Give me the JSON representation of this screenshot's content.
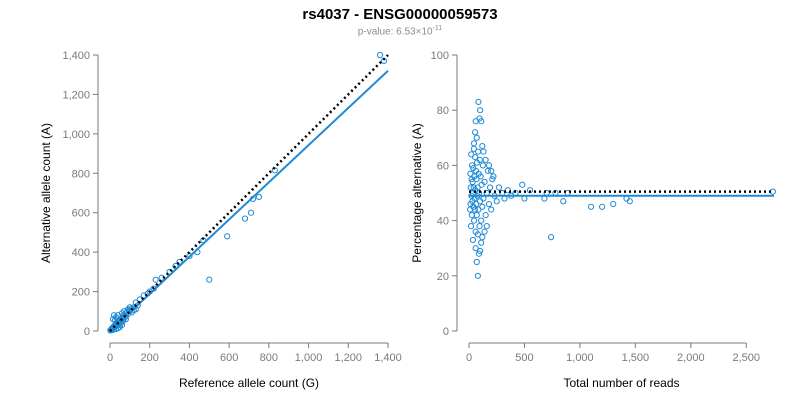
{
  "title": "rs4037 - ENSG00000059573",
  "subtitle": {
    "prefix": "p-value: 6.53×10",
    "exponent": "-11"
  },
  "colors": {
    "points": "#1f8ad6",
    "fit_line": "#1f8ad6",
    "reference_line": "#000000",
    "axis": "#7a7a7a"
  },
  "chart_data": [
    {
      "type": "scatter",
      "name": "allele-counts",
      "xlabel": "Reference allele count (G)",
      "ylabel": "Alternative allele count (A)",
      "xlim": [
        0,
        1400
      ],
      "ylim": [
        0,
        1400
      ],
      "xticks": [
        0,
        200,
        400,
        600,
        800,
        1000,
        1200,
        1400
      ],
      "xtick_labels": [
        "0",
        "200",
        "400",
        "600",
        "800",
        "1,000",
        "1,200",
        "1,400"
      ],
      "yticks": [
        0,
        200,
        400,
        600,
        800,
        1000,
        1200,
        1400
      ],
      "ytick_labels": [
        "0",
        "200",
        "400",
        "600",
        "800",
        "1,000",
        "1,200",
        "1,400"
      ],
      "fit_line": {
        "x": [
          0,
          1400
        ],
        "y": [
          0,
          1320
        ]
      },
      "reference_line": {
        "x": [
          0,
          1400
        ],
        "y": [
          0,
          1400
        ]
      },
      "points": [
        [
          1360,
          1400
        ],
        [
          1380,
          1370
        ],
        [
          830,
          815
        ],
        [
          750,
          680
        ],
        [
          720,
          670
        ],
        [
          710,
          600
        ],
        [
          680,
          570
        ],
        [
          590,
          480
        ],
        [
          500,
          260
        ],
        [
          470,
          460
        ],
        [
          440,
          400
        ],
        [
          400,
          380
        ],
        [
          350,
          350
        ],
        [
          330,
          330
        ],
        [
          300,
          300
        ],
        [
          260,
          270
        ],
        [
          230,
          260
        ],
        [
          220,
          215
        ],
        [
          200,
          200
        ],
        [
          190,
          190
        ],
        [
          170,
          180
        ],
        [
          150,
          160
        ],
        [
          140,
          130
        ],
        [
          130,
          145
        ],
        [
          120,
          120
        ],
        [
          110,
          115
        ],
        [
          100,
          100
        ],
        [
          95,
          105
        ],
        [
          90,
          85
        ],
        [
          85,
          95
        ],
        [
          80,
          75
        ],
        [
          78,
          90
        ],
        [
          75,
          70
        ],
        [
          70,
          80
        ],
        [
          68,
          60
        ],
        [
          65,
          68
        ],
        [
          60,
          62
        ],
        [
          58,
          55
        ],
        [
          55,
          58
        ],
        [
          52,
          50
        ],
        [
          50,
          56
        ],
        [
          48,
          45
        ],
        [
          45,
          50
        ],
        [
          42,
          40
        ],
        [
          40,
          44
        ],
        [
          38,
          36
        ],
        [
          36,
          40
        ],
        [
          34,
          30
        ],
        [
          32,
          35
        ],
        [
          30,
          32
        ],
        [
          28,
          27
        ],
        [
          26,
          30
        ],
        [
          25,
          24
        ],
        [
          24,
          26
        ],
        [
          22,
          22
        ],
        [
          21,
          25
        ],
        [
          20,
          18
        ],
        [
          19,
          21
        ],
        [
          18,
          20
        ],
        [
          17,
          16
        ],
        [
          16,
          19
        ],
        [
          15,
          14
        ],
        [
          14,
          17
        ],
        [
          13,
          12
        ],
        [
          12,
          15
        ],
        [
          11,
          10
        ],
        [
          10,
          13
        ],
        [
          9,
          9
        ],
        [
          8,
          11
        ],
        [
          7,
          7
        ],
        [
          6,
          8
        ],
        [
          5,
          6
        ],
        [
          4,
          5
        ],
        [
          3,
          4
        ],
        [
          2,
          3
        ],
        [
          20,
          80
        ],
        [
          30,
          70
        ],
        [
          40,
          80
        ],
        [
          15,
          60
        ],
        [
          25,
          55
        ],
        [
          35,
          65
        ],
        [
          55,
          40
        ],
        [
          65,
          50
        ],
        [
          45,
          30
        ],
        [
          60,
          90
        ],
        [
          70,
          100
        ],
        [
          90,
          110
        ],
        [
          100,
          120
        ],
        [
          110,
          95
        ],
        [
          80,
          60
        ],
        [
          120,
          105
        ],
        [
          130,
          110
        ],
        [
          60,
          30
        ],
        [
          50,
          20
        ],
        [
          40,
          15
        ],
        [
          30,
          10
        ],
        [
          20,
          8
        ],
        [
          10,
          4
        ]
      ]
    },
    {
      "type": "scatter",
      "name": "percent-alternative",
      "xlabel": "Total number of reads",
      "ylabel": "Percentage alternative (A)",
      "xlim": [
        0,
        2750
      ],
      "ylim": [
        0,
        100
      ],
      "xticks": [
        0,
        500,
        1000,
        1500,
        2000,
        2500
      ],
      "xtick_labels": [
        "0",
        "500",
        "1,000",
        "1,500",
        "2,000",
        "2,500"
      ],
      "yticks": [
        0,
        20,
        40,
        60,
        80,
        100
      ],
      "ytick_labels": [
        "0",
        "20",
        "40",
        "60",
        "80",
        "100"
      ],
      "fit_line": {
        "x": [
          0,
          2750
        ],
        "y": [
          49,
          49
        ]
      },
      "reference_line": {
        "x": [
          0,
          2750
        ],
        "y": [
          50.5,
          50.5
        ]
      },
      "points": [
        [
          2740,
          50.5
        ],
        [
          1450,
          47
        ],
        [
          1420,
          48
        ],
        [
          1300,
          46
        ],
        [
          1200,
          45
        ],
        [
          1100,
          45
        ],
        [
          890,
          50
        ],
        [
          850,
          47
        ],
        [
          780,
          50
        ],
        [
          740,
          34
        ],
        [
          700,
          50
        ],
        [
          680,
          48
        ],
        [
          550,
          51
        ],
        [
          500,
          48
        ],
        [
          480,
          53
        ],
        [
          420,
          50
        ],
        [
          380,
          49
        ],
        [
          350,
          51
        ],
        [
          320,
          48
        ],
        [
          300,
          50
        ],
        [
          270,
          52
        ],
        [
          250,
          47
        ],
        [
          230,
          49
        ],
        [
          210,
          55
        ],
        [
          200,
          44
        ],
        [
          190,
          52
        ],
        [
          180,
          46
        ],
        [
          170,
          58
        ],
        [
          160,
          50
        ],
        [
          150,
          42
        ],
        [
          140,
          54
        ],
        [
          130,
          48
        ],
        [
          125,
          60
        ],
        [
          120,
          45
        ],
        [
          115,
          53
        ],
        [
          110,
          40
        ],
        [
          105,
          56
        ],
        [
          100,
          47
        ],
        [
          98,
          62
        ],
        [
          95,
          38
        ],
        [
          90,
          50
        ],
        [
          88,
          57
        ],
        [
          85,
          44
        ],
        [
          82,
          65
        ],
        [
          80,
          35
        ],
        [
          78,
          52
        ],
        [
          75,
          49
        ],
        [
          72,
          61
        ],
        [
          70,
          42
        ],
        [
          68,
          55
        ],
        [
          65,
          46
        ],
        [
          63,
          58
        ],
        [
          60,
          36
        ],
        [
          58,
          51
        ],
        [
          55,
          63
        ],
        [
          53,
          44
        ],
        [
          50,
          48
        ],
        [
          48,
          56
        ],
        [
          46,
          40
        ],
        [
          44,
          66
        ],
        [
          42,
          52
        ],
        [
          40,
          45
        ],
        [
          38,
          59
        ],
        [
          36,
          33
        ],
        [
          34,
          50
        ],
        [
          32,
          54
        ],
        [
          30,
          47
        ],
        [
          28,
          60
        ],
        [
          26,
          42
        ],
        [
          24,
          55
        ],
        [
          22,
          49
        ],
        [
          20,
          64
        ],
        [
          18,
          38
        ],
        [
          16,
          52
        ],
        [
          14,
          46
        ],
        [
          12,
          57
        ],
        [
          10,
          44
        ],
        [
          85,
          83
        ],
        [
          100,
          80
        ],
        [
          95,
          77
        ],
        [
          110,
          76
        ],
        [
          60,
          76
        ],
        [
          55,
          72
        ],
        [
          45,
          68
        ],
        [
          70,
          70
        ],
        [
          120,
          67
        ],
        [
          90,
          28
        ],
        [
          70,
          25
        ],
        [
          80,
          20
        ],
        [
          60,
          30
        ],
        [
          110,
          32
        ],
        [
          100,
          29
        ],
        [
          130,
          65
        ],
        [
          150,
          62
        ],
        [
          180,
          60
        ],
        [
          200,
          58
        ],
        [
          220,
          56
        ],
        [
          140,
          36
        ],
        [
          160,
          38
        ],
        [
          120,
          34
        ]
      ]
    }
  ]
}
